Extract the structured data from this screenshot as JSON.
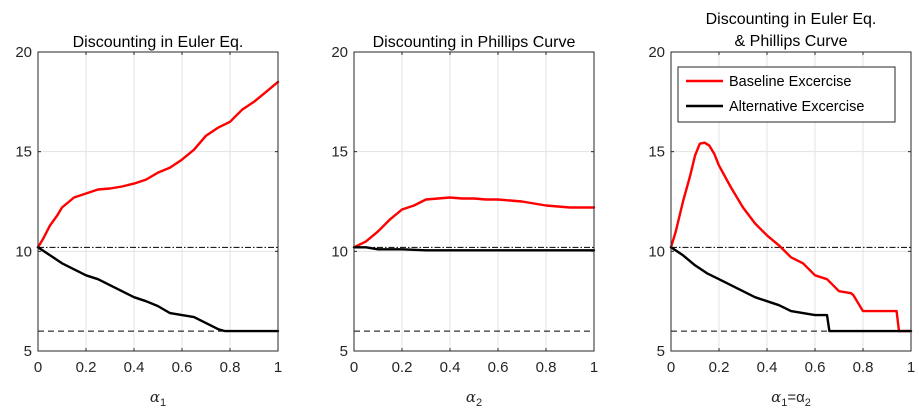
{
  "chart_data": [
    {
      "type": "line",
      "title": "Discounting in Euler Eq.",
      "xlabel_sym": "α",
      "xlabel_sub": "1",
      "xlim": [
        0,
        1
      ],
      "ylim": [
        5,
        20
      ],
      "xticks": [
        "0",
        "0.2",
        "0.4",
        "0.6",
        "0.8",
        "1"
      ],
      "yticks": [
        "5",
        "10",
        "15",
        "20"
      ],
      "grid": true,
      "hlines": [
        {
          "y": 10.2,
          "style": "dashdot"
        },
        {
          "y": 6.0,
          "style": "dashed"
        }
      ],
      "series": [
        {
          "color": "#ff0000",
          "x": [
            0,
            0.02,
            0.05,
            0.08,
            0.1,
            0.15,
            0.2,
            0.25,
            0.3,
            0.35,
            0.4,
            0.45,
            0.5,
            0.55,
            0.6,
            0.65,
            0.7,
            0.75,
            0.8,
            0.85,
            0.9,
            0.95,
            1.0
          ],
          "y": [
            10.2,
            10.6,
            11.3,
            11.8,
            12.2,
            12.7,
            12.9,
            13.1,
            13.15,
            13.25,
            13.4,
            13.6,
            13.95,
            14.2,
            14.6,
            15.1,
            15.8,
            16.2,
            16.5,
            17.1,
            17.5,
            18.0,
            18.5
          ]
        },
        {
          "color": "#000000",
          "x": [
            0,
            0.05,
            0.1,
            0.15,
            0.2,
            0.25,
            0.3,
            0.35,
            0.4,
            0.45,
            0.5,
            0.55,
            0.6,
            0.65,
            0.7,
            0.75,
            0.78,
            1.0
          ],
          "y": [
            10.2,
            9.8,
            9.4,
            9.1,
            8.8,
            8.6,
            8.3,
            8.0,
            7.7,
            7.5,
            7.25,
            6.9,
            6.8,
            6.7,
            6.4,
            6.1,
            6.0,
            6.0
          ]
        }
      ]
    },
    {
      "type": "line",
      "title": "Discounting in Phillips Curve",
      "xlabel_sym": "α",
      "xlabel_sub": "2",
      "xlim": [
        0,
        1
      ],
      "ylim": [
        5,
        20
      ],
      "xticks": [
        "0",
        "0.2",
        "0.4",
        "0.6",
        "0.8",
        "1"
      ],
      "yticks": [
        "5",
        "10",
        "15",
        "20"
      ],
      "grid": true,
      "hlines": [
        {
          "y": 10.2,
          "style": "dashdot"
        },
        {
          "y": 6.0,
          "style": "dashed"
        }
      ],
      "series": [
        {
          "color": "#ff0000",
          "x": [
            0,
            0.05,
            0.1,
            0.15,
            0.2,
            0.25,
            0.3,
            0.35,
            0.4,
            0.45,
            0.5,
            0.55,
            0.6,
            0.65,
            0.7,
            0.75,
            0.8,
            0.85,
            0.9,
            0.95,
            1.0
          ],
          "y": [
            10.2,
            10.5,
            11.0,
            11.6,
            12.1,
            12.3,
            12.6,
            12.65,
            12.7,
            12.65,
            12.65,
            12.6,
            12.6,
            12.55,
            12.5,
            12.4,
            12.3,
            12.25,
            12.2,
            12.2,
            12.2
          ]
        },
        {
          "color": "#000000",
          "x": [
            0,
            0.05,
            0.1,
            0.2,
            0.3,
            0.4,
            0.5,
            0.6,
            0.7,
            0.8,
            0.9,
            1.0
          ],
          "y": [
            10.2,
            10.2,
            10.1,
            10.1,
            10.05,
            10.05,
            10.05,
            10.05,
            10.05,
            10.05,
            10.05,
            10.05
          ]
        }
      ]
    },
    {
      "type": "line",
      "title_lines": [
        "Discounting in Euler Eq.",
        "& Phillips Curve"
      ],
      "xlabel_parts": [
        "α",
        "1",
        "=α",
        "2"
      ],
      "xlim": [
        0,
        1
      ],
      "ylim": [
        5,
        20
      ],
      "xticks": [
        "0",
        "0.2",
        "0.4",
        "0.6",
        "0.8",
        "1"
      ],
      "yticks": [
        "5",
        "10",
        "15",
        "20"
      ],
      "grid": true,
      "hlines": [
        {
          "y": 10.2,
          "style": "dashdot"
        },
        {
          "y": 6.0,
          "style": "dashed"
        }
      ],
      "legend": {
        "placement": "top-right",
        "entries": [
          {
            "label": "Baseline Excercise",
            "color": "#ff0000"
          },
          {
            "label": "Alternative Excercise",
            "color": "#000000"
          }
        ]
      },
      "series": [
        {
          "color": "#ff0000",
          "x": [
            0,
            0.02,
            0.05,
            0.08,
            0.1,
            0.12,
            0.14,
            0.16,
            0.18,
            0.2,
            0.25,
            0.3,
            0.35,
            0.4,
            0.45,
            0.5,
            0.55,
            0.6,
            0.65,
            0.7,
            0.75,
            0.76,
            0.8,
            0.85,
            0.9,
            0.94,
            0.95,
            1.0
          ],
          "y": [
            10.2,
            11.0,
            12.5,
            13.8,
            14.8,
            15.4,
            15.45,
            15.3,
            14.9,
            14.3,
            13.2,
            12.2,
            11.4,
            10.8,
            10.3,
            9.7,
            9.4,
            8.8,
            8.6,
            8.0,
            7.9,
            7.8,
            7.0,
            7.0,
            7.0,
            7.0,
            6.0,
            6.0
          ]
        },
        {
          "color": "#000000",
          "x": [
            0,
            0.05,
            0.1,
            0.15,
            0.2,
            0.25,
            0.3,
            0.35,
            0.4,
            0.45,
            0.5,
            0.55,
            0.6,
            0.65,
            0.66,
            0.7,
            0.8,
            0.9,
            1.0
          ],
          "y": [
            10.2,
            9.8,
            9.3,
            8.9,
            8.6,
            8.3,
            8.0,
            7.7,
            7.5,
            7.3,
            7.0,
            6.9,
            6.8,
            6.8,
            6.0,
            6.0,
            6.0,
            6.0,
            6.0
          ]
        }
      ]
    }
  ]
}
